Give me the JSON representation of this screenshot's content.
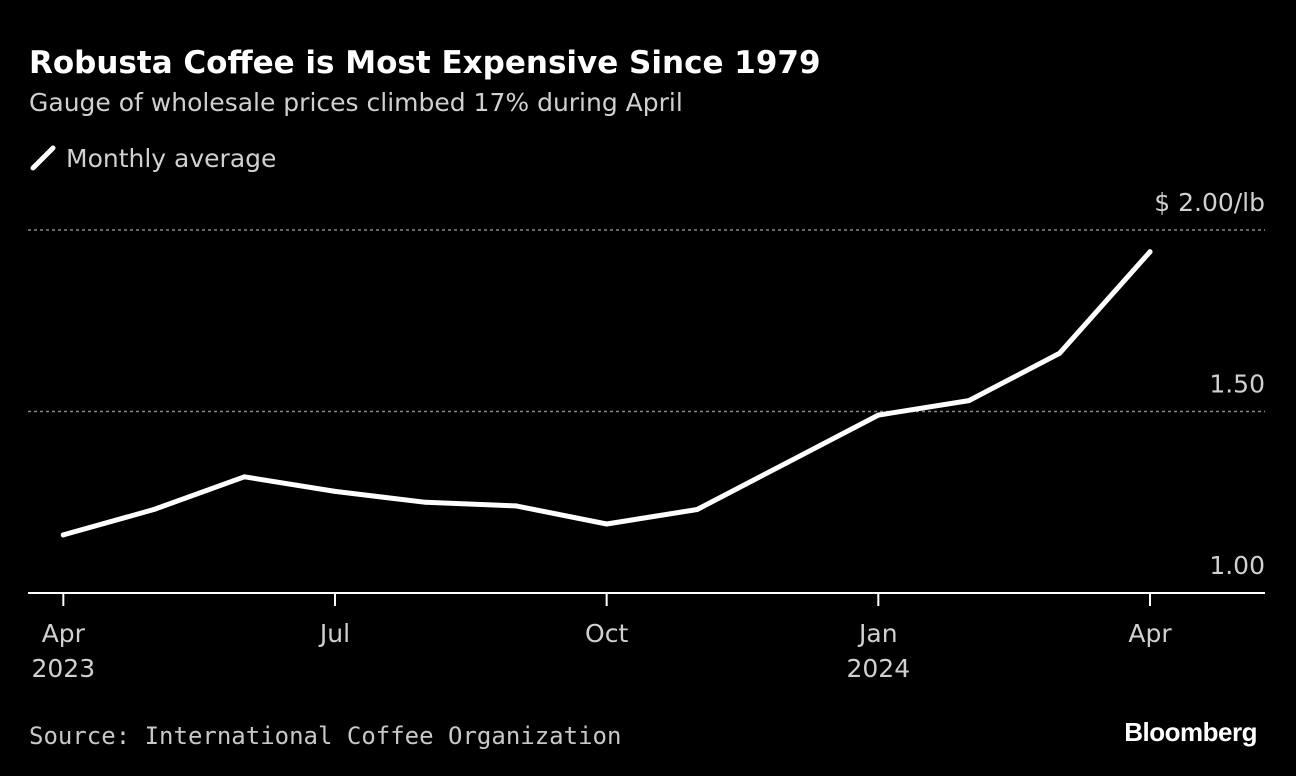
{
  "chart_data": {
    "type": "line",
    "title": "Robusta Coffee is Most Expensive Since 1979",
    "subtitle": "Gauge of wholesale prices climbed 17% during April",
    "legend": [
      "Monthly average"
    ],
    "legend_placement": "top-left",
    "x": [
      "2023-04",
      "2023-05",
      "2023-06",
      "2023-07",
      "2023-08",
      "2023-09",
      "2023-10",
      "2023-11",
      "2023-12",
      "2024-01",
      "2024-02",
      "2024-03",
      "2024-04"
    ],
    "series": [
      {
        "name": "Monthly average",
        "values": [
          1.16,
          1.23,
          1.32,
          1.28,
          1.25,
          1.24,
          1.19,
          1.23,
          1.36,
          1.49,
          1.53,
          1.66,
          1.94
        ]
      }
    ],
    "x_ticks": [
      {
        "index": 0,
        "label": "Apr",
        "sublabel": "2023"
      },
      {
        "index": 3,
        "label": "Jul",
        "sublabel": ""
      },
      {
        "index": 6,
        "label": "Oct",
        "sublabel": ""
      },
      {
        "index": 9,
        "label": "Jan",
        "sublabel": "2024"
      },
      {
        "index": 12,
        "label": "Apr",
        "sublabel": ""
      }
    ],
    "y_ticks": [
      {
        "value": 1.0,
        "label": "1.00"
      },
      {
        "value": 1.5,
        "label": "1.50"
      },
      {
        "value": 2.0,
        "label": "$ 2.00/lb"
      }
    ],
    "ylim": [
      1.0,
      2.0
    ],
    "xlim_index": [
      -0.39,
      13.27
    ],
    "grid": true,
    "xlabel": "",
    "ylabel": "",
    "source": "Source: International Coffee Organization",
    "brand": "Bloomberg",
    "colors": {
      "background": "#000000",
      "line": "#ffffff",
      "grid": "#888888"
    }
  }
}
